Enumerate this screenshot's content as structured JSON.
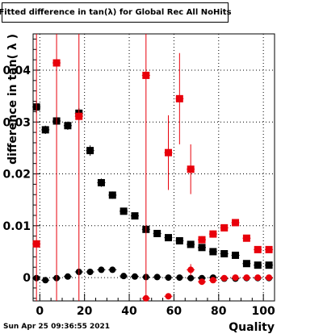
{
  "title": "Fitted difference in tan(λ) for Global Rec All NoHits",
  "timestamp": "Sun Apr 25 09:36:55 2021",
  "chart_data": {
    "type": "scatter",
    "xlabel": "Quality",
    "ylabel": "difference in tan( λ )",
    "xlim": [
      -3,
      105
    ],
    "ylim": [
      -0.0045,
      0.047
    ],
    "x_ticks": [
      0,
      20,
      40,
      60,
      80,
      100
    ],
    "y_ticks": [
      0,
      0.01,
      0.02,
      0.03,
      0.04
    ],
    "x_tick_labels": [
      "0",
      "20",
      "40",
      "60",
      "80",
      "100"
    ],
    "y_tick_labels": [
      "0",
      "0.01",
      "0.02",
      "0.03",
      "0.04"
    ],
    "grid": true,
    "series": [
      {
        "color": "#000000",
        "marker": "square",
        "points": [
          {
            "x": -1.5,
            "y": 0.0329,
            "err": 0.0012
          },
          {
            "x": 2.5,
            "y": 0.0285,
            "err": 0.0008
          },
          {
            "x": 7.5,
            "y": 0.0302,
            "err": 0.0008
          },
          {
            "x": 12.5,
            "y": 0.0293,
            "err": 0.0008
          },
          {
            "x": 17.5,
            "y": 0.0317,
            "err": 0.001
          },
          {
            "x": 22.5,
            "y": 0.0245,
            "err": 0.001
          },
          {
            "x": 27.5,
            "y": 0.0183,
            "err": 0.0008
          },
          {
            "x": 32.5,
            "y": 0.0159,
            "err": 0.0007
          },
          {
            "x": 37.5,
            "y": 0.0128,
            "err": 0.0005
          },
          {
            "x": 42.5,
            "y": 0.0119,
            "err": 0.0005
          },
          {
            "x": 47.5,
            "y": 0.0093,
            "err": 0.0005
          },
          {
            "x": 52.5,
            "y": 0.0085,
            "err": 0.0004
          },
          {
            "x": 57.5,
            "y": 0.0077,
            "err": 0.0004
          },
          {
            "x": 62.5,
            "y": 0.0071,
            "err": 0.0004
          },
          {
            "x": 67.5,
            "y": 0.0064,
            "err": 0.0004
          },
          {
            "x": 72.5,
            "y": 0.0058,
            "err": 0.0003
          },
          {
            "x": 77.5,
            "y": 0.005,
            "err": 0.0003
          },
          {
            "x": 82.5,
            "y": 0.0046,
            "err": 0.0003
          },
          {
            "x": 87.5,
            "y": 0.0043,
            "err": 0.0003
          },
          {
            "x": 92.5,
            "y": 0.0027,
            "err": 0.0003
          },
          {
            "x": 97.5,
            "y": 0.0024,
            "err": 0.0003
          },
          {
            "x": 102.5,
            "y": 0.0024,
            "err": 0.0003
          }
        ]
      },
      {
        "color": "#000000",
        "marker": "circle",
        "points": [
          {
            "x": -1.5,
            "y": -0.0001,
            "err": 0.0002
          },
          {
            "x": 2.5,
            "y": -0.0005,
            "err": 0.0002
          },
          {
            "x": 7.5,
            "y": -0.0001,
            "err": 0.0002
          },
          {
            "x": 12.5,
            "y": 0.0002,
            "err": 0.0002
          },
          {
            "x": 17.5,
            "y": 0.0011,
            "err": 0.0004
          },
          {
            "x": 22.5,
            "y": 0.0011,
            "err": 0.0005
          },
          {
            "x": 27.5,
            "y": 0.0015,
            "err": 0.0004
          },
          {
            "x": 32.5,
            "y": 0.0015,
            "err": 0.0004
          },
          {
            "x": 37.5,
            "y": 0.0003,
            "err": 0.0003
          },
          {
            "x": 42.5,
            "y": 0.0002,
            "err": 0.0002
          },
          {
            "x": 47.5,
            "y": 0.0001,
            "err": 0.0002
          },
          {
            "x": 52.5,
            "y": 0.0001,
            "err": 0.0002
          },
          {
            "x": 57.5,
            "y": 0.0,
            "err": 0.0002
          },
          {
            "x": 62.5,
            "y": 0.0,
            "err": 0.0002
          },
          {
            "x": 67.5,
            "y": -0.0001,
            "err": 0.0002
          },
          {
            "x": 72.5,
            "y": -0.0001,
            "err": 0.0002
          },
          {
            "x": 77.5,
            "y": 0.0,
            "err": 0.0002
          },
          {
            "x": 82.5,
            "y": -0.0002,
            "err": 0.0002
          },
          {
            "x": 87.5,
            "y": -0.0002,
            "err": 0.0002
          },
          {
            "x": 92.5,
            "y": -0.0001,
            "err": 0.0002
          },
          {
            "x": 97.5,
            "y": -0.0001,
            "err": 0.0002
          },
          {
            "x": 102.5,
            "y": -0.0001,
            "err": 0.0002
          }
        ]
      },
      {
        "color": "#e8000b",
        "marker": "square",
        "points": [
          {
            "x": -1.5,
            "y": 0.0065,
            "err": 0.047
          },
          {
            "x": 7.5,
            "y": 0.0414,
            "err": 0.047
          },
          {
            "x": 17.5,
            "y": 0.0311,
            "err": 0.047
          },
          {
            "x": 47.5,
            "y": 0.039,
            "err": 0.047
          },
          {
            "x": 57.5,
            "y": 0.0241,
            "err": 0.0072
          },
          {
            "x": 62.5,
            "y": 0.0345,
            "err": 0.0088
          },
          {
            "x": 67.5,
            "y": 0.0209,
            "err": 0.0048
          },
          {
            "x": 72.5,
            "y": 0.0073,
            "err": 0.0007
          },
          {
            "x": 77.5,
            "y": 0.0084,
            "err": 0.0007
          },
          {
            "x": 82.5,
            "y": 0.0096,
            "err": 0.0006
          },
          {
            "x": 87.5,
            "y": 0.0106,
            "err": 0.0005
          },
          {
            "x": 92.5,
            "y": 0.0076,
            "err": 0.0005
          },
          {
            "x": 97.5,
            "y": 0.0054,
            "err": 0.0004
          },
          {
            "x": 102.5,
            "y": 0.0054,
            "err": 0.0004
          }
        ]
      },
      {
        "color": "#e8000b",
        "marker": "circle",
        "points": [
          {
            "x": 47.5,
            "y": -0.004,
            "err": 0.0003
          },
          {
            "x": 57.5,
            "y": -0.0036,
            "err": 0.0004
          },
          {
            "x": 67.5,
            "y": 0.0015,
            "err": 0.0011
          },
          {
            "x": 72.5,
            "y": -0.0008,
            "err": 0.0004
          },
          {
            "x": 77.5,
            "y": -0.0005,
            "err": 0.0003
          },
          {
            "x": 82.5,
            "y": -0.0001,
            "err": 0.0002
          },
          {
            "x": 87.5,
            "y": 0.0,
            "err": 0.0002
          },
          {
            "x": 92.5,
            "y": 0.0,
            "err": 0.0002
          },
          {
            "x": 97.5,
            "y": 0.0,
            "err": 0.0002
          },
          {
            "x": 102.5,
            "y": 0.0,
            "err": 0.0002
          }
        ]
      }
    ]
  }
}
